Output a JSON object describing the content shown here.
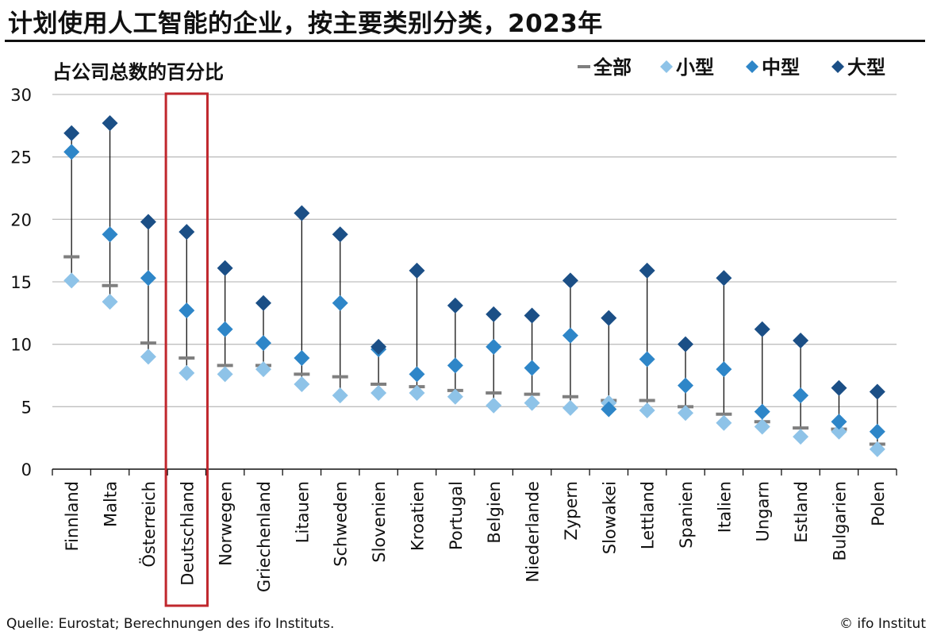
{
  "title": "计划使用人工智能的企业，按主要类别分类，2023年",
  "source": "Quelle: Eurostat; Berechnungen des ifo Instituts.",
  "credit": "© ifo Institut",
  "colors": {
    "all": "#7f7f7f",
    "small": "#8ec3e8",
    "medium": "#2e86c8",
    "large": "#1b4f86",
    "range_line": "#111111",
    "highlight": "#c0272d",
    "grid": "#bfbfbf"
  },
  "chart_data": {
    "type": "scatter",
    "ylabel": "占公司总数的百分比",
    "ylim": [
      0,
      30
    ],
    "yticks": [
      0,
      5,
      10,
      15,
      20,
      25,
      30
    ],
    "grid": true,
    "legend_position": "top-right",
    "highlighted_category": "Deutschland",
    "categories": [
      "Finnland",
      "Malta",
      "Österreich",
      "Deutschland",
      "Norwegen",
      "Griechenland",
      "Litauen",
      "Schweden",
      "Slovenien",
      "Kroatien",
      "Portugal",
      "Belgien",
      "Niederlande",
      "Zypern",
      "Slowakei",
      "Lettland",
      "Spanien",
      "Italien",
      "Ungarn",
      "Estland",
      "Bulgarien",
      "Polen"
    ],
    "series": [
      {
        "name": "全部",
        "marker": "dash",
        "values": [
          17.0,
          14.7,
          10.1,
          8.9,
          8.3,
          8.3,
          7.6,
          7.4,
          6.8,
          6.6,
          6.3,
          6.1,
          6.0,
          5.8,
          5.5,
          5.5,
          5.0,
          4.4,
          3.8,
          3.3,
          3.2,
          2.0
        ]
      },
      {
        "name": "小型",
        "marker": "diamond",
        "values": [
          15.1,
          13.4,
          9.0,
          7.7,
          7.6,
          8.0,
          6.8,
          5.9,
          6.1,
          6.1,
          5.8,
          5.1,
          5.3,
          4.9,
          5.3,
          4.7,
          4.5,
          3.7,
          3.4,
          2.6,
          3.0,
          1.6
        ]
      },
      {
        "name": "中型",
        "marker": "diamond",
        "values": [
          25.4,
          18.8,
          15.3,
          12.7,
          11.2,
          10.1,
          8.9,
          13.3,
          9.6,
          7.6,
          8.3,
          9.8,
          8.1,
          10.7,
          4.8,
          8.8,
          6.7,
          8.0,
          4.6,
          5.9,
          3.8,
          3.0
        ]
      },
      {
        "name": "大型",
        "marker": "diamond",
        "values": [
          26.9,
          27.7,
          19.8,
          19.0,
          16.1,
          13.3,
          20.5,
          18.8,
          9.8,
          15.9,
          13.1,
          12.4,
          12.3,
          15.1,
          12.1,
          15.9,
          10.0,
          15.3,
          11.2,
          10.3,
          6.5,
          6.2
        ]
      }
    ]
  }
}
